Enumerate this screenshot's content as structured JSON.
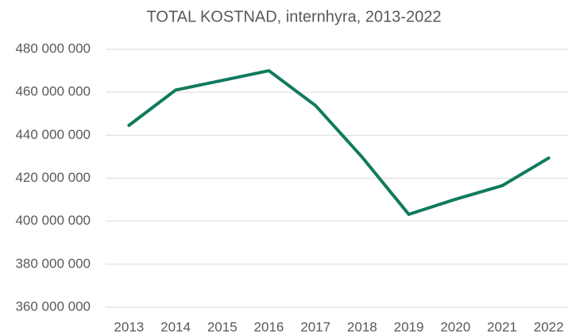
{
  "chart_data": {
    "type": "line",
    "title": "TOTAL KOSTNAD, internhyra, 2013-2022",
    "categories": [
      "2013",
      "2014",
      "2015",
      "2016",
      "2017",
      "2018",
      "2019",
      "2020",
      "2021",
      "2022"
    ],
    "series": [
      {
        "name": "TOTAL KOSTNAD",
        "color": "#107a5e",
        "values": [
          444600000,
          461000000,
          465500000,
          470000000,
          453800000,
          429800000,
          403200000,
          410200000,
          416500000,
          429400000
        ]
      }
    ],
    "ylim": [
      360000000,
      480000000
    ],
    "yticks": [
      {
        "value": 360000000,
        "label": "360 000 000"
      },
      {
        "value": 380000000,
        "label": "380 000 000"
      },
      {
        "value": 400000000,
        "label": "400 000 000"
      },
      {
        "value": 420000000,
        "label": "420 000 000"
      },
      {
        "value": 440000000,
        "label": "440 000 000"
      },
      {
        "value": 460000000,
        "label": "460 000 000"
      },
      {
        "value": 480000000,
        "label": "480 000 000"
      }
    ],
    "grid": true,
    "legend": false
  }
}
